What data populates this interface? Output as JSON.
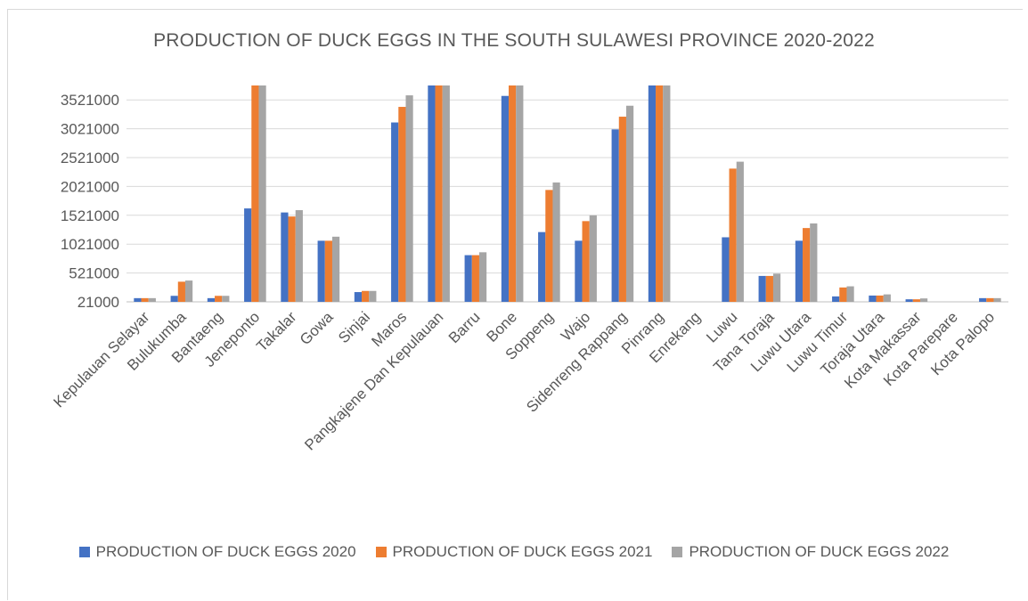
{
  "chart_data": {
    "type": "bar",
    "title": "PRODUCTION OF DUCK EGGS IN THE SOUTH SULAWESI PROVINCE 2020-2022",
    "xlabel": "",
    "ylabel": "",
    "ylim": [
      21000,
      3771000
    ],
    "yticks": [
      "3521000",
      "3021000",
      "2521000",
      "2021000",
      "1521000",
      "1021000",
      "521000",
      "21000"
    ],
    "ytick_values": [
      3521000,
      3021000,
      2521000,
      2021000,
      1521000,
      1021000,
      521000,
      21000
    ],
    "grid": true,
    "legend_position": "bottom",
    "categories": [
      "Kepulauan Selayar",
      "Bulukumba",
      "Bantaeng",
      "Jeneponto",
      "Takalar",
      "Gowa",
      "Sinjai",
      "Maros",
      "Pangkajene Dan Kepulauan",
      "Barru",
      "Bone",
      "Soppeng",
      "Wajo",
      "Sidenreng Rappang",
      "Pinrang",
      "Enrekang",
      "Luwu",
      "Tana Toraja",
      "Luwu Utara",
      "Luwu Timur",
      "Toraja Utara",
      "Kota Makassar",
      "Kota Parepare",
      "Kota Palopo"
    ],
    "series": [
      {
        "name": "PRODUCTION OF DUCK EGGS 2020",
        "color": "#4472c4",
        "values": [
          85000,
          125000,
          85000,
          1640000,
          1570000,
          1080000,
          190000,
          3130000,
          3771000,
          830000,
          3590000,
          1230000,
          1080000,
          3010000,
          3771000,
          0,
          1140000,
          470000,
          1080000,
          115000,
          130000,
          65000,
          0,
          85000
        ]
      },
      {
        "name": "PRODUCTION OF DUCK EGGS 2021",
        "color": "#ed7d31",
        "values": [
          85000,
          370000,
          125000,
          3771000,
          1500000,
          1080000,
          210000,
          3400000,
          3771000,
          830000,
          3771000,
          1960000,
          1420000,
          3230000,
          3771000,
          0,
          2330000,
          470000,
          1300000,
          270000,
          130000,
          65000,
          0,
          85000
        ]
      },
      {
        "name": "PRODUCTION OF DUCK EGGS 2022",
        "color": "#a5a5a5",
        "values": [
          85000,
          390000,
          125000,
          3771000,
          1610000,
          1150000,
          210000,
          3600000,
          3771000,
          880000,
          3771000,
          2090000,
          1520000,
          3420000,
          3771000,
          0,
          2450000,
          510000,
          1380000,
          290000,
          150000,
          80000,
          0,
          85000
        ]
      }
    ]
  }
}
